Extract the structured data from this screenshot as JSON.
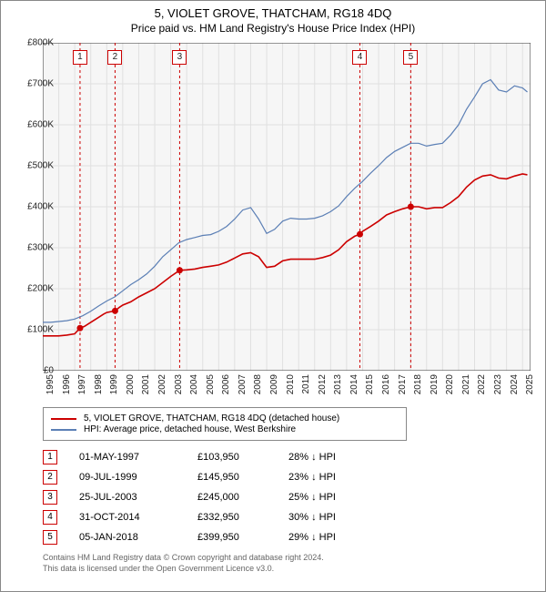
{
  "title": "5, VIOLET GROVE, THATCHAM, RG18 4DQ",
  "subtitle": "Price paid vs. HM Land Registry's House Price Index (HPI)",
  "chart": {
    "type": "line",
    "background_color": "#f6f6f6",
    "grid_color": "#e0e0e0",
    "axis_color": "#333333",
    "marker_line_color": "#cc0000",
    "marker_box_border": "#cc0000",
    "xlim": [
      1995,
      2025.5
    ],
    "ylim": [
      0,
      800000
    ],
    "ytick_step": 100000,
    "yticks": [
      "£0",
      "£100K",
      "£200K",
      "£300K",
      "£400K",
      "£500K",
      "£600K",
      "£700K",
      "£800K"
    ],
    "xticks": [
      "1995",
      "1996",
      "1997",
      "1998",
      "1999",
      "2000",
      "2001",
      "2002",
      "2003",
      "2004",
      "2005",
      "2006",
      "2007",
      "2008",
      "2009",
      "2010",
      "2011",
      "2012",
      "2013",
      "2014",
      "2015",
      "2016",
      "2017",
      "2018",
      "2019",
      "2020",
      "2021",
      "2022",
      "2023",
      "2024",
      "2025"
    ],
    "series": [
      {
        "name": "property",
        "label": "5, VIOLET GROVE, THATCHAM, RG18 4DQ (detached house)",
        "color": "#cc0000",
        "line_width": 1.6,
        "data": [
          [
            1995,
            85000
          ],
          [
            1995.5,
            85000
          ],
          [
            1996,
            85000
          ],
          [
            1996.5,
            87000
          ],
          [
            1997,
            90000
          ],
          [
            1997.33,
            103950
          ],
          [
            1997.6,
            108000
          ],
          [
            1998,
            118000
          ],
          [
            1998.4,
            128000
          ],
          [
            1998.8,
            138000
          ],
          [
            1999,
            142000
          ],
          [
            1999.52,
            145950
          ],
          [
            1999.8,
            155000
          ],
          [
            2000,
            160000
          ],
          [
            2000.5,
            168000
          ],
          [
            2001,
            180000
          ],
          [
            2001.5,
            190000
          ],
          [
            2002,
            200000
          ],
          [
            2002.5,
            215000
          ],
          [
            2003,
            230000
          ],
          [
            2003.56,
            245000
          ],
          [
            2004,
            246000
          ],
          [
            2004.5,
            248000
          ],
          [
            2005,
            252000
          ],
          [
            2005.5,
            255000
          ],
          [
            2006,
            258000
          ],
          [
            2006.5,
            265000
          ],
          [
            2007,
            275000
          ],
          [
            2007.5,
            285000
          ],
          [
            2008,
            288000
          ],
          [
            2008.5,
            278000
          ],
          [
            2009,
            252000
          ],
          [
            2009.5,
            255000
          ],
          [
            2010,
            268000
          ],
          [
            2010.5,
            272000
          ],
          [
            2011,
            272000
          ],
          [
            2011.5,
            272000
          ],
          [
            2012,
            272000
          ],
          [
            2012.5,
            276000
          ],
          [
            2013,
            282000
          ],
          [
            2013.5,
            295000
          ],
          [
            2014,
            315000
          ],
          [
            2014.5,
            328000
          ],
          [
            2014.83,
            332950
          ],
          [
            2015,
            340000
          ],
          [
            2015.5,
            352000
          ],
          [
            2016,
            365000
          ],
          [
            2016.5,
            380000
          ],
          [
            2017,
            388000
          ],
          [
            2017.5,
            395000
          ],
          [
            2018.01,
            399950
          ],
          [
            2018.5,
            400000
          ],
          [
            2019,
            395000
          ],
          [
            2019.5,
            398000
          ],
          [
            2020,
            398000
          ],
          [
            2020.5,
            410000
          ],
          [
            2021,
            425000
          ],
          [
            2021.5,
            448000
          ],
          [
            2022,
            465000
          ],
          [
            2022.5,
            475000
          ],
          [
            2023,
            478000
          ],
          [
            2023.5,
            470000
          ],
          [
            2024,
            468000
          ],
          [
            2024.5,
            475000
          ],
          [
            2025,
            480000
          ],
          [
            2025.3,
            478000
          ]
        ]
      },
      {
        "name": "hpi",
        "label": "HPI: Average price, detached house, West Berkshire",
        "color": "#5b7fb5",
        "line_width": 1.2,
        "data": [
          [
            1995,
            118000
          ],
          [
            1995.5,
            118000
          ],
          [
            1996,
            120000
          ],
          [
            1996.5,
            122000
          ],
          [
            1997,
            126000
          ],
          [
            1997.5,
            134000
          ],
          [
            1998,
            145000
          ],
          [
            1998.5,
            158000
          ],
          [
            1999,
            170000
          ],
          [
            1999.5,
            180000
          ],
          [
            2000,
            195000
          ],
          [
            2000.5,
            210000
          ],
          [
            2001,
            222000
          ],
          [
            2001.5,
            236000
          ],
          [
            2002,
            255000
          ],
          [
            2002.5,
            278000
          ],
          [
            2003,
            295000
          ],
          [
            2003.5,
            312000
          ],
          [
            2004,
            320000
          ],
          [
            2004.5,
            325000
          ],
          [
            2005,
            330000
          ],
          [
            2005.5,
            332000
          ],
          [
            2006,
            340000
          ],
          [
            2006.5,
            352000
          ],
          [
            2007,
            370000
          ],
          [
            2007.5,
            392000
          ],
          [
            2008,
            398000
          ],
          [
            2008.5,
            370000
          ],
          [
            2009,
            335000
          ],
          [
            2009.5,
            345000
          ],
          [
            2010,
            365000
          ],
          [
            2010.5,
            372000
          ],
          [
            2011,
            370000
          ],
          [
            2011.5,
            370000
          ],
          [
            2012,
            372000
          ],
          [
            2012.5,
            378000
          ],
          [
            2013,
            388000
          ],
          [
            2013.5,
            402000
          ],
          [
            2014,
            425000
          ],
          [
            2014.5,
            445000
          ],
          [
            2015,
            462000
          ],
          [
            2015.5,
            482000
          ],
          [
            2016,
            500000
          ],
          [
            2016.5,
            520000
          ],
          [
            2017,
            535000
          ],
          [
            2017.5,
            545000
          ],
          [
            2018,
            555000
          ],
          [
            2018.5,
            555000
          ],
          [
            2019,
            548000
          ],
          [
            2019.5,
            552000
          ],
          [
            2020,
            555000
          ],
          [
            2020.5,
            575000
          ],
          [
            2021,
            600000
          ],
          [
            2021.5,
            638000
          ],
          [
            2022,
            668000
          ],
          [
            2022.5,
            700000
          ],
          [
            2023,
            710000
          ],
          [
            2023.5,
            685000
          ],
          [
            2024,
            680000
          ],
          [
            2024.5,
            695000
          ],
          [
            2025,
            690000
          ],
          [
            2025.3,
            680000
          ]
        ]
      }
    ],
    "markers": [
      {
        "n": "1",
        "x": 1997.33,
        "y": 103950
      },
      {
        "n": "2",
        "x": 1999.52,
        "y": 145950
      },
      {
        "n": "3",
        "x": 2003.56,
        "y": 245000
      },
      {
        "n": "4",
        "x": 2014.83,
        "y": 332950
      },
      {
        "n": "5",
        "x": 2018.01,
        "y": 399950
      }
    ]
  },
  "legend": {
    "rows": [
      {
        "color": "#cc0000",
        "label": "5, VIOLET GROVE, THATCHAM, RG18 4DQ (detached house)"
      },
      {
        "color": "#5b7fb5",
        "label": "HPI: Average price, detached house, West Berkshire"
      }
    ]
  },
  "transactions": [
    {
      "n": "1",
      "date": "01-MAY-1997",
      "price": "£103,950",
      "pct": "28%",
      "dir": "↓",
      "vs": "HPI"
    },
    {
      "n": "2",
      "date": "09-JUL-1999",
      "price": "£145,950",
      "pct": "23%",
      "dir": "↓",
      "vs": "HPI"
    },
    {
      "n": "3",
      "date": "25-JUL-2003",
      "price": "£245,000",
      "pct": "25%",
      "dir": "↓",
      "vs": "HPI"
    },
    {
      "n": "4",
      "date": "31-OCT-2014",
      "price": "£332,950",
      "pct": "30%",
      "dir": "↓",
      "vs": "HPI"
    },
    {
      "n": "5",
      "date": "05-JAN-2018",
      "price": "£399,950",
      "pct": "29%",
      "dir": "↓",
      "vs": "HPI"
    }
  ],
  "footer": {
    "line1": "Contains HM Land Registry data © Crown copyright and database right 2024.",
    "line2": "This data is licensed under the Open Government Licence v3.0."
  }
}
